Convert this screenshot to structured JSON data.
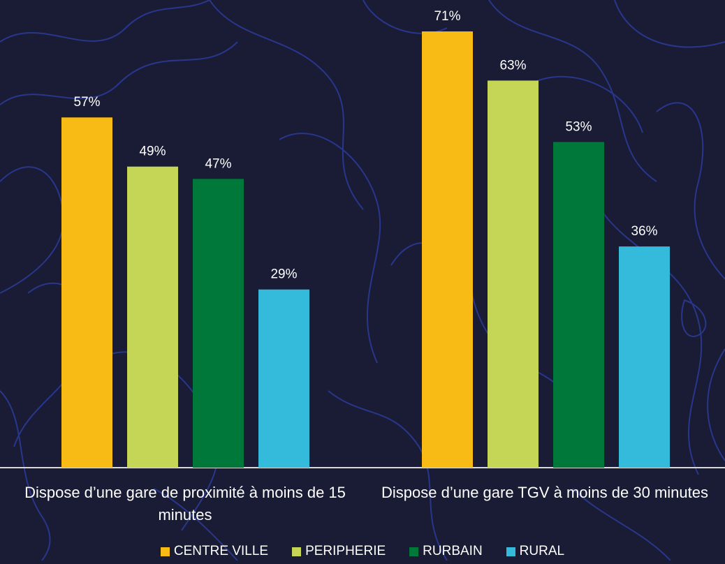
{
  "chart_data": {
    "type": "bar",
    "categories": [
      "Dispose d’une gare de proximité à moins de 15 minutes",
      "Dispose d’une gare TGV à moins de 30 minutes"
    ],
    "series": [
      {
        "name": "CENTRE VILLE",
        "values": [
          57,
          71
        ],
        "labels": [
          "57%",
          "71%"
        ],
        "color": "#f8bb16"
      },
      {
        "name": "PERIPHERIE",
        "values": [
          49,
          63
        ],
        "labels": [
          "49%",
          "63%"
        ],
        "color": "#c5d555"
      },
      {
        "name": "RURBAIN",
        "values": [
          47,
          53
        ],
        "labels": [
          "47%",
          "53%"
        ],
        "color": "#00783a"
      },
      {
        "name": "RURAL",
        "values": [
          29,
          36
        ],
        "labels": [
          "29%",
          "36%"
        ],
        "color": "#34bbdb"
      }
    ],
    "value_unit": "%",
    "title": "",
    "xlabel": "",
    "ylabel": "",
    "ylim": [
      0,
      71
    ],
    "grid": false,
    "legend_position": "bottom",
    "background": "#1a1b35",
    "decoration_color": "#2b3c9b"
  }
}
